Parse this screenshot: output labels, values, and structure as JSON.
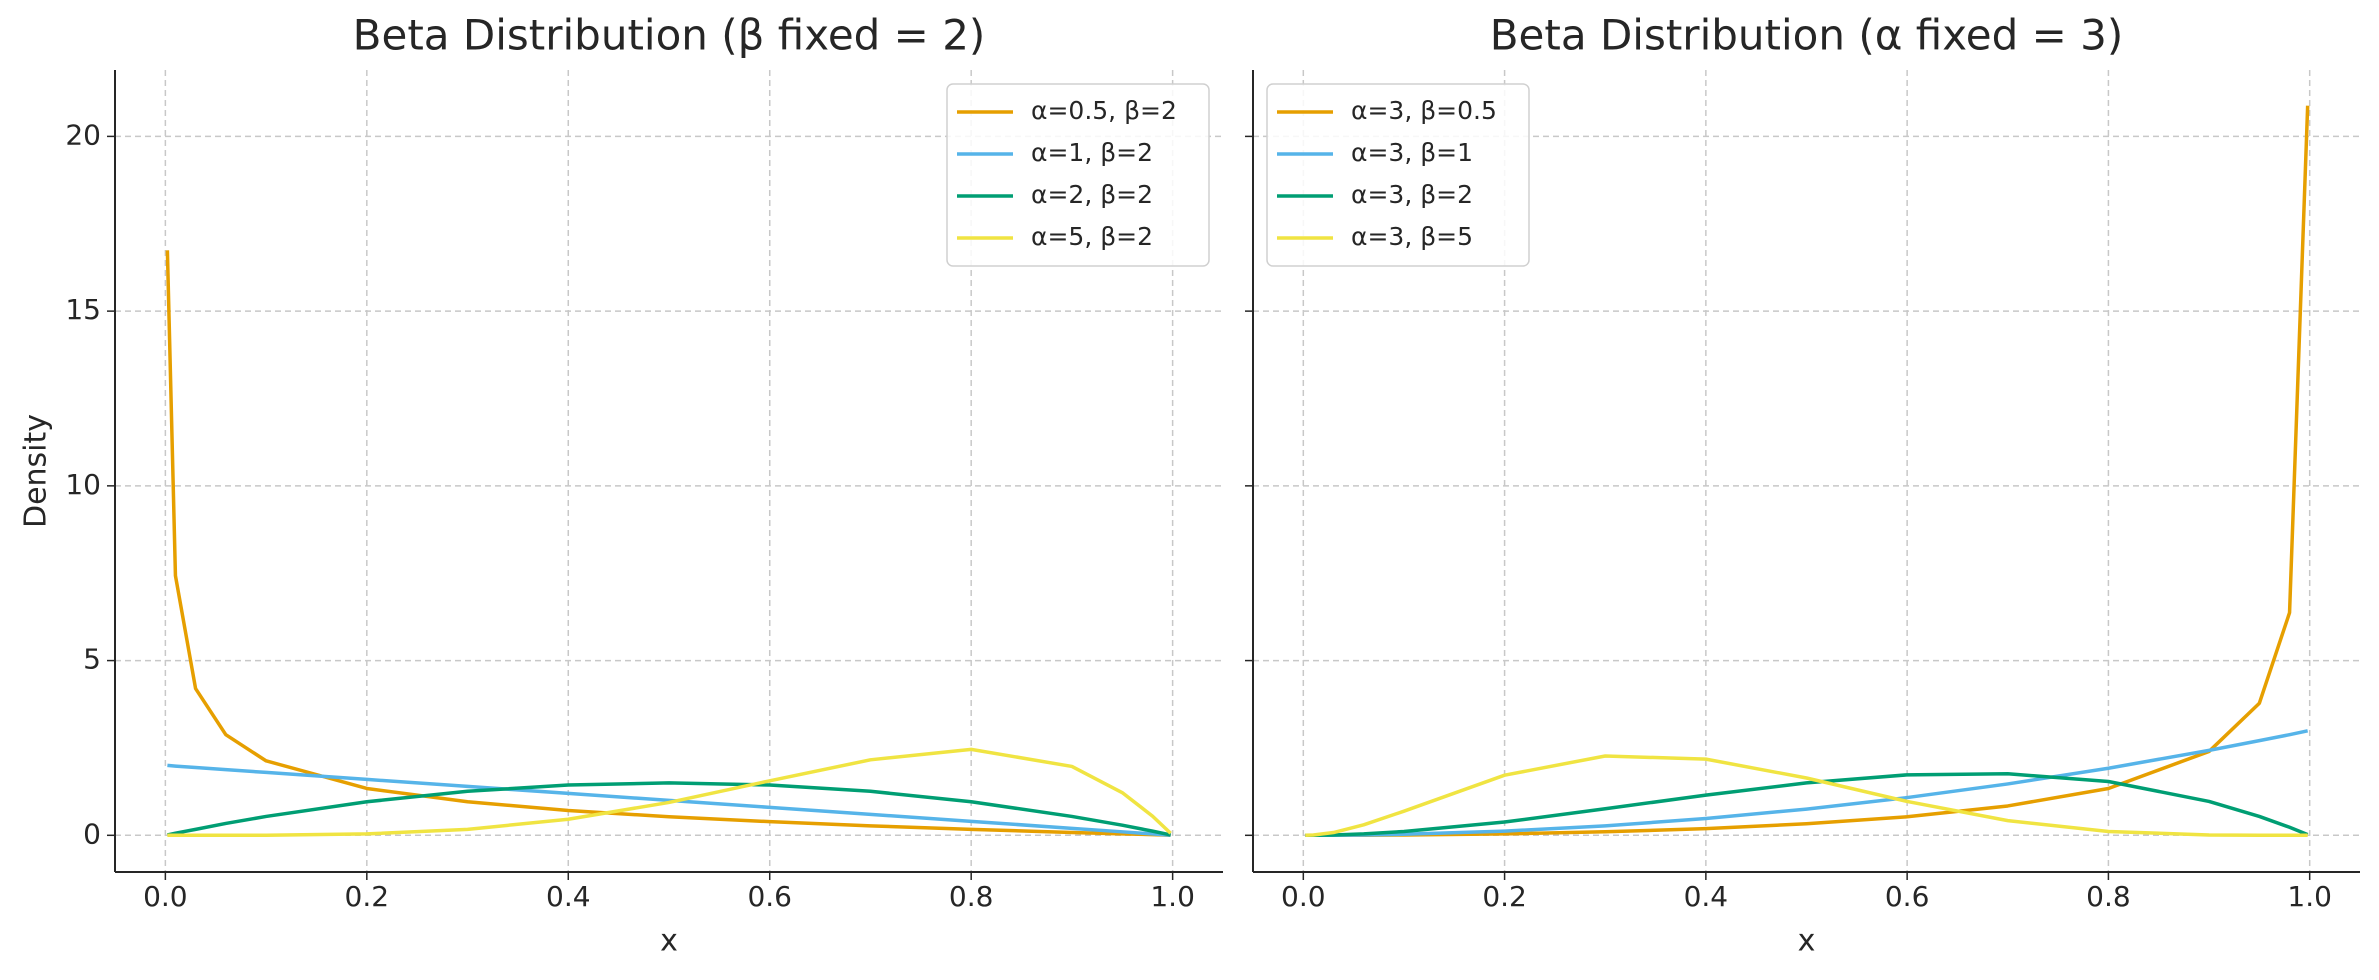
{
  "chart_data": [
    {
      "type": "line",
      "title": "Beta Distribution (β fixed = 2)",
      "xlabel": "x",
      "ylabel": "Density",
      "x": [
        0.002,
        0.01,
        0.03,
        0.06,
        0.1,
        0.2,
        0.3,
        0.4,
        0.5,
        0.6,
        0.7,
        0.8,
        0.9,
        0.95,
        0.98,
        0.998
      ],
      "series": [
        {
          "name": "α=0.5, β=2",
          "color": "#E69F00",
          "values": [
            16.74,
            7.43,
            4.2,
            2.88,
            2.13,
            1.34,
            0.96,
            0.71,
            0.53,
            0.39,
            0.27,
            0.17,
            0.08,
            0.04,
            0.02,
            0
          ]
        },
        {
          "name": "α=1, β=2",
          "color": "#56B4E9",
          "values": [
            2.0,
            1.98,
            1.94,
            1.88,
            1.8,
            1.6,
            1.4,
            1.2,
            1.0,
            0.8,
            0.6,
            0.4,
            0.2,
            0.1,
            0.04,
            0
          ]
        },
        {
          "name": "α=2, β=2",
          "color": "#009E73",
          "values": [
            0.01,
            0.06,
            0.17,
            0.34,
            0.54,
            0.96,
            1.26,
            1.44,
            1.5,
            1.44,
            1.26,
            0.96,
            0.54,
            0.29,
            0.12,
            0.01
          ]
        },
        {
          "name": "α=5, β=2",
          "color": "#F0E442",
          "values": [
            0,
            0,
            0,
            0,
            0,
            0.04,
            0.17,
            0.46,
            0.94,
            1.56,
            2.16,
            2.46,
            1.97,
            1.22,
            0.55,
            0.06
          ]
        }
      ],
      "xlim": [
        -0.05,
        1.05
      ],
      "xticks": [
        {
          "value": 0,
          "label": "0.0"
        },
        0.2,
        0.4,
        0.6,
        0.8,
        {
          "value": 1,
          "label": "1.0"
        }
      ],
      "ylim": [
        -1.05,
        21.9
      ],
      "yticks": [
        0,
        5,
        10,
        15,
        20
      ],
      "grid": true,
      "legend": "upper right"
    },
    {
      "type": "line",
      "title": "Beta Distribution (α fixed = 3)",
      "xlabel": "x",
      "x": [
        0.002,
        0.01,
        0.03,
        0.06,
        0.1,
        0.2,
        0.3,
        0.4,
        0.5,
        0.6,
        0.7,
        0.8,
        0.9,
        0.95,
        0.98,
        0.998
      ],
      "series": [
        {
          "name": "α=3, β=0.5",
          "color": "#E69F00",
          "values": [
            0,
            0,
            0,
            0,
            0.01,
            0.04,
            0.1,
            0.19,
            0.33,
            0.53,
            0.84,
            1.34,
            2.4,
            3.78,
            6.37,
            20.88
          ]
        },
        {
          "name": "α=3, β=1",
          "color": "#56B4E9",
          "values": [
            0,
            0,
            0,
            0.01,
            0.03,
            0.12,
            0.27,
            0.48,
            0.75,
            1.08,
            1.47,
            1.92,
            2.43,
            2.71,
            2.88,
            2.99
          ]
        },
        {
          "name": "α=3, β=2",
          "color": "#009E73",
          "values": [
            0,
            0,
            0.01,
            0.04,
            0.11,
            0.38,
            0.76,
            1.15,
            1.5,
            1.73,
            1.76,
            1.54,
            0.97,
            0.54,
            0.23,
            0.02
          ]
        },
        {
          "name": "α=3, β=5",
          "color": "#F0E442",
          "values": [
            0,
            0.01,
            0.08,
            0.3,
            0.69,
            1.72,
            2.27,
            2.18,
            1.64,
            0.97,
            0.42,
            0.11,
            0.01,
            0,
            0,
            0
          ]
        }
      ],
      "xlim": [
        -0.05,
        1.05
      ],
      "xticks": [
        {
          "value": 0,
          "label": "0.0"
        },
        0.2,
        0.4,
        0.6,
        0.8,
        {
          "value": 1,
          "label": "1.0"
        }
      ],
      "ylim": [
        -1.05,
        21.9
      ],
      "yticks": [
        0,
        5,
        10,
        15,
        20
      ],
      "grid": true,
      "legend": "upper left"
    }
  ]
}
